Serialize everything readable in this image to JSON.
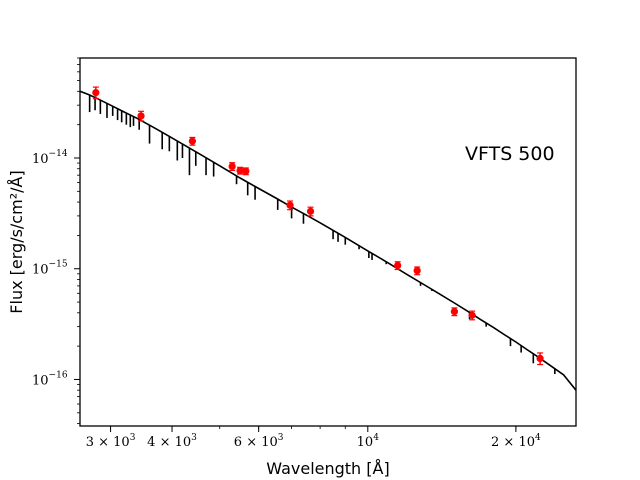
{
  "chart_data": {
    "type": "scatter",
    "title": "",
    "xlabel": "Wavelength [Å]",
    "ylabel": "Flux [erg/s/cm²/Å]",
    "x_scale": "log",
    "y_scale": "log",
    "xlim": [
      2600,
      26500
    ],
    "ylim": [
      3.8e-17,
      8e-14
    ],
    "annotation": "VFTS 500",
    "x_ticks": [
      {
        "value": 3000,
        "mantissa": "3 × 10",
        "exp": "3"
      },
      {
        "value": 4000,
        "mantissa": "4 × 10",
        "exp": "3"
      },
      {
        "value": 6000,
        "mantissa": "6 × 10",
        "exp": "3"
      },
      {
        "value": 10000,
        "mantissa": "10",
        "exp": "4"
      },
      {
        "value": 20000,
        "mantissa": "2 × 10",
        "exp": "4"
      }
    ],
    "y_ticks": [
      {
        "value": 1e-16,
        "mantissa": "10",
        "exp": "−16"
      },
      {
        "value": 1e-15,
        "mantissa": "10",
        "exp": "−15"
      },
      {
        "value": 1e-14,
        "mantissa": "10",
        "exp": "−14"
      }
    ],
    "series": [
      {
        "type": "line",
        "color": "#000000",
        "x": [
          2600,
          2700,
          2800,
          3000,
          3200,
          3400,
          3700,
          4000,
          4500,
          5000,
          5500,
          6000,
          6500,
          7000,
          7500,
          8000,
          9000,
          10000,
          11000,
          12000,
          13000,
          14000,
          15000,
          16000,
          17000,
          18000,
          19000,
          20000,
          21000,
          22000,
          23000,
          24000,
          25000,
          26500
        ],
        "y": [
          4e-14,
          3.75e-14,
          3.5e-14,
          3e-14,
          2.6e-14,
          2.28e-14,
          1.85e-14,
          1.52e-14,
          1.12e-14,
          8.5e-15,
          6.6e-15,
          5.3e-15,
          4.35e-15,
          3.6e-15,
          3.05e-15,
          2.6e-15,
          1.92e-15,
          1.45e-15,
          1.13e-15,
          8.9e-16,
          7.2e-16,
          5.9e-16,
          4.9e-16,
          4.1e-16,
          3.45e-16,
          2.95e-16,
          2.52e-16,
          2.18e-16,
          1.88e-16,
          1.64e-16,
          1.43e-16,
          1.25e-16,
          1.1e-16,
          8e-17
        ],
        "absorption_lines": [
          [
            2720,
            2.6e-14
          ],
          [
            2790,
            2.7e-14
          ],
          [
            2860,
            2.5e-14
          ],
          [
            2950,
            2.3e-14
          ],
          [
            3030,
            2.4e-14
          ],
          [
            3100,
            2.2e-14
          ],
          [
            3160,
            2.1e-14
          ],
          [
            3230,
            2e-14
          ],
          [
            3290,
            1.9e-14
          ],
          [
            3340,
            1.95e-14
          ],
          [
            3430,
            1.8e-14
          ],
          [
            3600,
            1.35e-14
          ],
          [
            3820,
            1.2e-14
          ],
          [
            3950,
            1.15e-14
          ],
          [
            4100,
            9.5e-15
          ],
          [
            4200,
            1e-14
          ],
          [
            4340,
            7e-15
          ],
          [
            4470,
            8.5e-15
          ],
          [
            4690,
            7e-15
          ],
          [
            4860,
            6.8e-15
          ],
          [
            5410,
            5.8e-15
          ],
          [
            5700,
            4.6e-15
          ],
          [
            5900,
            4.2e-15
          ],
          [
            6560,
            3.4e-15
          ],
          [
            7000,
            2.85e-15
          ],
          [
            7400,
            2.55e-15
          ],
          [
            8500,
            1.85e-15
          ],
          [
            8700,
            1.75e-15
          ],
          [
            9000,
            1.65e-15
          ],
          [
            9600,
            1.5e-15
          ],
          [
            10050,
            1.25e-15
          ],
          [
            10200,
            1.2e-15
          ],
          [
            10900,
            1.1e-15
          ],
          [
            12800,
            7e-16
          ],
          [
            13500,
            6.3e-16
          ],
          [
            16100,
            3.5e-16
          ],
          [
            17400,
            3e-16
          ],
          [
            19500,
            2e-16
          ],
          [
            20500,
            1.75e-16
          ],
          [
            21700,
            1.4e-16
          ],
          [
            24000,
            1.12e-16
          ]
        ]
      },
      {
        "type": "scatter",
        "color": "#ff0000",
        "x": [
          2800,
          3460,
          4400,
          5300,
          5500,
          5650,
          6950,
          7650,
          11500,
          12600,
          15000,
          16300,
          22400
        ],
        "y": [
          3.9e-14,
          2.4e-14,
          1.42e-14,
          8.4e-15,
          7.7e-15,
          7.6e-15,
          3.75e-15,
          3.3e-15,
          1.07e-15,
          9.6e-16,
          4.1e-16,
          3.8e-16,
          1.55e-16
        ],
        "yerr_frac": [
          0.12,
          0.1,
          0.08,
          0.08,
          0.07,
          0.07,
          0.09,
          0.09,
          0.08,
          0.08,
          0.08,
          0.09,
          0.12
        ]
      }
    ]
  }
}
